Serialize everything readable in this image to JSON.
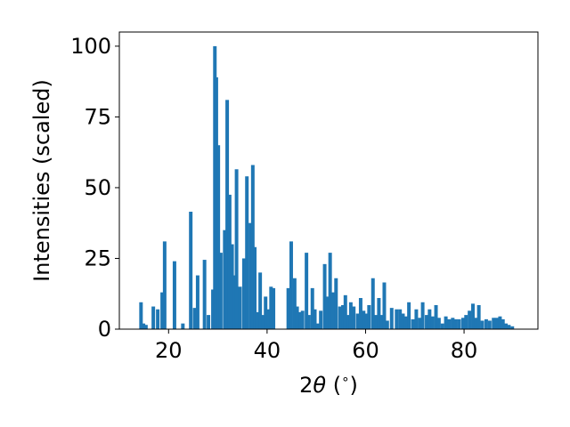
{
  "chart_data": {
    "type": "bar",
    "xlabel_parts": {
      "pre": "2",
      "theta": "θ",
      "unit_open": " (",
      "deg": "∘",
      "unit_close": ")"
    },
    "ylabel": "Intensities (scaled)",
    "xlim": [
      10,
      95
    ],
    "ylim": [
      0,
      105
    ],
    "x_ticks": [
      20,
      40,
      60,
      80
    ],
    "y_ticks": [
      0,
      25,
      50,
      75,
      100
    ],
    "bar_width": 0.72,
    "color": "#1f77b4",
    "x": [
      14.4,
      14.9,
      15.4,
      16.9,
      17.8,
      18.7,
      19.2,
      21.2,
      22.9,
      24.5,
      25.3,
      25.9,
      27.3,
      28.1,
      29.0,
      29.4,
      29.7,
      30.1,
      30.6,
      31.4,
      31.9,
      32.4,
      32.9,
      33.3,
      33.8,
      34.5,
      35.3,
      35.9,
      36.6,
      37.1,
      37.5,
      38.0,
      38.6,
      39.2,
      39.7,
      40.3,
      40.8,
      41.3,
      42.0,
      42.6,
      44.3,
      44.9,
      45.6,
      46.1,
      46.8,
      47.2,
      48.0,
      48.5,
      49.2,
      49.7,
      50.3,
      50.9,
      51.7,
      52.2,
      52.8,
      53.4,
      54.0,
      54.8,
      55.4,
      55.9,
      56.4,
      57.0,
      57.6,
      58.4,
      59.0,
      59.6,
      60.2,
      60.7,
      61.5,
      62.1,
      62.7,
      63.3,
      63.8,
      64.4,
      65.3,
      66.3,
      67.0,
      67.6,
      68.2,
      68.8,
      69.6,
      70.3,
      71.0,
      71.6,
      72.4,
      73.0,
      73.6,
      74.3,
      74.9,
      75.6,
      76.3,
      77.0,
      77.7,
      78.3,
      79.0,
      79.8,
      80.4,
      81.1,
      81.8,
      82.4,
      83.0,
      83.7,
      84.5,
      85.2,
      86.0,
      86.6,
      87.3,
      87.9,
      88.5,
      89.1,
      89.8
    ],
    "values": [
      9.5,
      2.0,
      1.5,
      8.0,
      7.0,
      13.0,
      31.0,
      24.0,
      2.0,
      41.5,
      7.5,
      19.0,
      24.5,
      5.0,
      14.0,
      100.0,
      89.0,
      65.0,
      27.0,
      35.0,
      81.0,
      47.5,
      30.0,
      19.0,
      56.5,
      15.0,
      25.0,
      54.0,
      37.5,
      58.0,
      29.0,
      6.0,
      20.0,
      5.0,
      11.5,
      7.0,
      15.0,
      14.5,
      0.0,
      0.0,
      14.5,
      31.0,
      18.0,
      8.0,
      6.0,
      6.5,
      27.0,
      5.0,
      14.5,
      7.0,
      2.0,
      6.5,
      23.0,
      11.5,
      27.0,
      13.0,
      18.0,
      8.0,
      8.5,
      12.0,
      5.0,
      9.5,
      8.0,
      5.5,
      11.0,
      6.5,
      5.5,
      8.5,
      18.0,
      5.0,
      11.0,
      5.0,
      16.5,
      3.0,
      7.5,
      7.0,
      7.0,
      5.5,
      4.5,
      9.5,
      3.5,
      7.0,
      4.0,
      9.5,
      5.0,
      7.0,
      4.5,
      8.5,
      4.0,
      2.0,
      4.5,
      3.5,
      4.0,
      3.5,
      3.5,
      4.0,
      5.0,
      6.5,
      9.0,
      4.0,
      8.5,
      3.0,
      3.5,
      3.0,
      4.0,
      4.0,
      4.5,
      3.5,
      2.0,
      1.5,
      1.0
    ]
  }
}
